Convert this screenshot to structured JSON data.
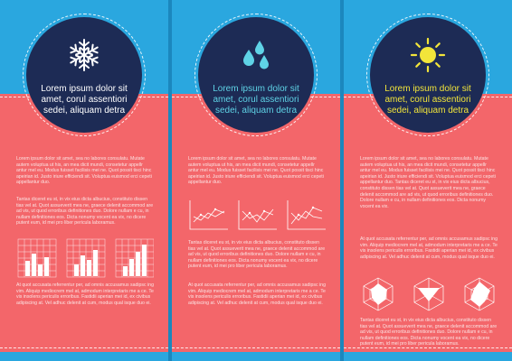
{
  "colors": {
    "background": "#2aa7df",
    "panel_pink": "#f3666a",
    "circle_navy": "#1d2b55",
    "title_white": "#ffffff",
    "title_cyan": "#5fd3e6",
    "title_yellow": "#f2e53a"
  },
  "panels": [
    {
      "icon": "snowflake-icon",
      "title_lines": [
        "Lorem ipsum dolor sit",
        "amet, corul assentiori",
        "sedei, aliquam detra"
      ],
      "para1": "Lorem ipsum dolor sit amet, sea no labores consulatu. Mutate autem voluptua ut his, an mea dicit mundi, consetetur appellr antur mel eu. Modus fuisset facilisis mei ne. Quot possit tisci hinc apeirian id. Justo iriure efficiendi sit. Voluptua euismod erci cepeti appellantur duo.",
      "para2": "Tantas diceret eu st, in vix eius dicta albucius, constituto dissen tias vel at. Quot assueverit mea ne, graece delenit accommod are ad vis, ut quod erroribus definitiones duo. Dolore nullam e cu, in nullam definitiones eos. Dicta nonumy vocent ea vix, no dicere putent eum, id mei pro liber pericula laboramus.",
      "para3": "At quot accusata referrentur per, ad omnis accusamus sadipsc ing vim. Aliquip mediocrem mel at, admodum interpretaris me a ce. Te vis insolens periculis erroribus. Fastidii aperian mei id, ex civibus adipiscing at. Vel adhuc delenit at cum, modus qual isque duo ei."
    },
    {
      "icon": "water-drops-icon",
      "title_lines": [
        "Lorem ipsum dolor sit",
        "amet, corul assentiori",
        "sedei, aliquam detra"
      ],
      "para1": "Lorem ipsum dolor sit amet, sea no labores consulatu. Mutate autem voluptua ut his, an mea dicit mundi, consetetur appellr antur mel eu. Modus fuisset facilisis mei ne. Quot possit tisci hinc apeirian id. Justo iriure efficiendi sit. Voluptua euismod erci cepeti appellantur duo.",
      "para2": "Tantas diceret eu st, in vix eius dicta albucius, constituto dissen tias vel at. Quot assueverit mea ne, graece delenit accommod are ad vis, ut quod erroribus definitiones duo. Dolore nullam e cu, in nullam definitiones eos. Dicta nonumy vocent ea vix, no dicere putent eum, id mei pro liber pericula laboramus.",
      "para3": "At quot accusata referrentur per, ad omnis accusamus sadipsc ing vim. Aliquip mediocrem mel at, admodum interpretaris me a ce. Te vis insolens periculis erroribus. Fastidii aperian mei id, ex civibus adipiscing at. Vel adhuc delenit at cum, modus qual isque duo ei."
    },
    {
      "icon": "sun-icon",
      "title_lines": [
        "Lorem ipsum dolor sit",
        "amet, corul assentiori",
        "sedei, aliquam detra"
      ],
      "para1": "Lorem ipsum dolor sit amet, sea no labores consulatu. Mutate autem voluptua ut his, an mea dicit mundi, consetetur appellr antur mel eu. Modus fuisset facilisis mei ne. Quot possit tisci hinc apeirian id. Justo iriure efficiendi sit. Voluptua euismod erci cepeti appellantur duo. Tantas diceret eu st, in vix eius dicta albucius, constituto dissen tias vel at. Quot assueverit mea ne, graece delenit accommod are ad vis, ut quod erroribus definitiones duo. Dolore nullam e cu, in nullam definitiones eos. Dicta nonumy vocent ea vix.",
      "para2": "At quot accusata referrentur per, ad omnis accusamus sadipsc ing vim. Aliquip mediocrem mel at, admodum interpretaris me a ce. Te vis insolens periculis erroribus. Fastidii aperian mei id, ex civibus adipiscing at. Vel adhuc delenit at cum, modus qual isque duo ei.",
      "para3": "Tantas diceret eu st, in vix eius dicta albucius, constituto dissen tias vel at. Quot assueverit mea ne, graece delenit accommod are ad vis, ut quod erroribus definitiones duo. Dolore nullam e cu, in nullam definitiones eos. Dicta nonumy vocent ea vix, no dicere putent eum, id mei pro liber pericula laboramus."
    }
  ]
}
